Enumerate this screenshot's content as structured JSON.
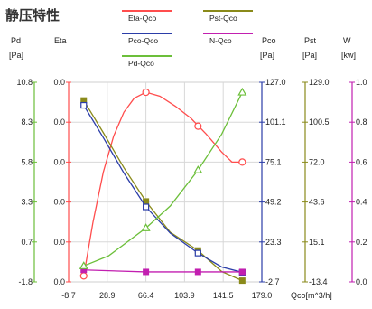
{
  "chart_data": {
    "type": "line",
    "title": "静压特性",
    "xlabel": "Qco[m^3/h]",
    "x_ticks": [
      "-8.7",
      "28.9",
      "66.4",
      "103.9",
      "141.5",
      "179.0"
    ],
    "xlim": [
      -8.7,
      179.0
    ],
    "grid": true,
    "legend_position": "top",
    "legend": [
      {
        "key": "eta",
        "label": "Eta-Qco",
        "color": "#ff4d4d"
      },
      {
        "key": "pst",
        "label": "Pst-Qco",
        "color": "#8a8a1a"
      },
      {
        "key": "pco",
        "label": "Pco-Qco",
        "color": "#2b3da8"
      },
      {
        "key": "n",
        "label": "N-Qco",
        "color": "#c21fb0"
      },
      {
        "key": "pd",
        "label": "Pd-Qco",
        "color": "#6cbf3a"
      }
    ],
    "axes": [
      {
        "key": "pd",
        "name": "Pd",
        "unit": "[Pa]",
        "side": "left",
        "ticks": [
          "10.8",
          "8.3",
          "5.8",
          "3.3",
          "0.7",
          "-1.8"
        ],
        "range": [
          -1.8,
          10.8
        ],
        "color": "#6cbf3a"
      },
      {
        "key": "eta",
        "name": "Eta",
        "unit": "",
        "side": "left",
        "ticks": [
          "0.0",
          "0.0",
          "0.0",
          "0.0",
          "0.0",
          "0.0"
        ],
        "range": [
          0,
          1
        ],
        "color": "#ff4d4d"
      },
      {
        "key": "pco",
        "name": "Pco",
        "unit": "[Pa]",
        "side": "right",
        "ticks": [
          "127.0",
          "101.1",
          "75.1",
          "49.2",
          "23.3",
          "-2.7"
        ],
        "range": [
          -2.7,
          127.0
        ],
        "color": "#2b3da8"
      },
      {
        "key": "pst",
        "name": "Pst",
        "unit": "[Pa]",
        "side": "right",
        "ticks": [
          "129.0",
          "100.5",
          "72.0",
          "43.6",
          "15.1",
          "-13.4"
        ],
        "range": [
          -13.4,
          129.0
        ],
        "color": "#8a8a1a"
      },
      {
        "key": "n",
        "name": "W",
        "unit": "[kw]",
        "side": "right",
        "ticks": [
          "1.0",
          "0.8",
          "0.6",
          "0.4",
          "0.2",
          "0.0"
        ],
        "range": [
          0,
          1.0
        ],
        "color": "#c21fb0"
      }
    ],
    "series": [
      {
        "name": "Eta-Qco",
        "axis": "eta",
        "marker": "circle",
        "x": [
          6,
          66.4,
          117,
          160
        ],
        "y": [
          0.03,
          0.95,
          0.78,
          0.6
        ],
        "curve": [
          [
            6,
            0.03
          ],
          [
            15,
            0.3
          ],
          [
            25,
            0.55
          ],
          [
            35,
            0.73
          ],
          [
            45,
            0.85
          ],
          [
            55,
            0.92
          ],
          [
            66.4,
            0.95
          ],
          [
            80,
            0.93
          ],
          [
            95,
            0.88
          ],
          [
            110,
            0.82
          ],
          [
            125,
            0.74
          ],
          [
            140,
            0.65
          ],
          [
            150,
            0.6
          ],
          [
            160,
            0.6
          ]
        ]
      },
      {
        "name": "Pst-Qco",
        "axis": "pst",
        "marker": "square",
        "x": [
          6,
          66.4,
          117,
          160
        ],
        "y": [
          116,
          44,
          9,
          -12.5
        ],
        "curve": [
          [
            6,
            116
          ],
          [
            25,
            93
          ],
          [
            45,
            68
          ],
          [
            66.4,
            44
          ],
          [
            90,
            22
          ],
          [
            117,
            9
          ],
          [
            140,
            -6
          ],
          [
            160,
            -12.5
          ]
        ]
      },
      {
        "name": "Pco-Qco",
        "axis": "pco",
        "marker": "square-open",
        "x": [
          6,
          66.4,
          117,
          160
        ],
        "y": [
          112,
          46,
          16,
          3.5
        ],
        "curve": [
          [
            6,
            112
          ],
          [
            25,
            91
          ],
          [
            45,
            68
          ],
          [
            66.4,
            46
          ],
          [
            90,
            29
          ],
          [
            117,
            16
          ],
          [
            140,
            7
          ],
          [
            160,
            3.5
          ]
        ]
      },
      {
        "name": "N-Qco",
        "axis": "n",
        "marker": "square",
        "x": [
          6,
          66.4,
          117,
          160
        ],
        "y": [
          0.06,
          0.05,
          0.05,
          0.05
        ]
      },
      {
        "name": "Pd-Qco",
        "axis": "pd",
        "marker": "triangle",
        "x": [
          6,
          66.4,
          117,
          160
        ],
        "y": [
          0.08,
          0.27,
          0.56,
          0.95
        ],
        "curve": [
          [
            6,
            0.08
          ],
          [
            30,
            0.13
          ],
          [
            66.4,
            0.27
          ],
          [
            90,
            0.38
          ],
          [
            117,
            0.56
          ],
          [
            140,
            0.74
          ],
          [
            160,
            0.95
          ]
        ],
        "note": "y normalized on chart height"
      }
    ]
  }
}
